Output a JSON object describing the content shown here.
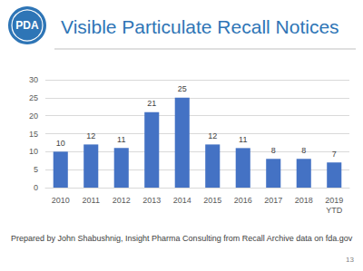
{
  "chart_data": {
    "type": "bar",
    "title": "Visible Particulate Recall Notices",
    "categories": [
      "2010",
      "2011",
      "2012",
      "2013",
      "2014",
      "2015",
      "2016",
      "2017",
      "2018",
      "2019\nYTD"
    ],
    "values": [
      10,
      12,
      11,
      21,
      25,
      12,
      11,
      8,
      8,
      7
    ],
    "color": "#4472c4",
    "ylim": [
      0,
      30
    ],
    "yticks": [
      0,
      5,
      10,
      15,
      20,
      25,
      30
    ],
    "grid": true,
    "data_labels": true,
    "logo": "PDA",
    "source": "Prepared by John Shabushnig, Insight Pharma Consulting from Recall Archive data on fda.gov",
    "page": "13"
  }
}
